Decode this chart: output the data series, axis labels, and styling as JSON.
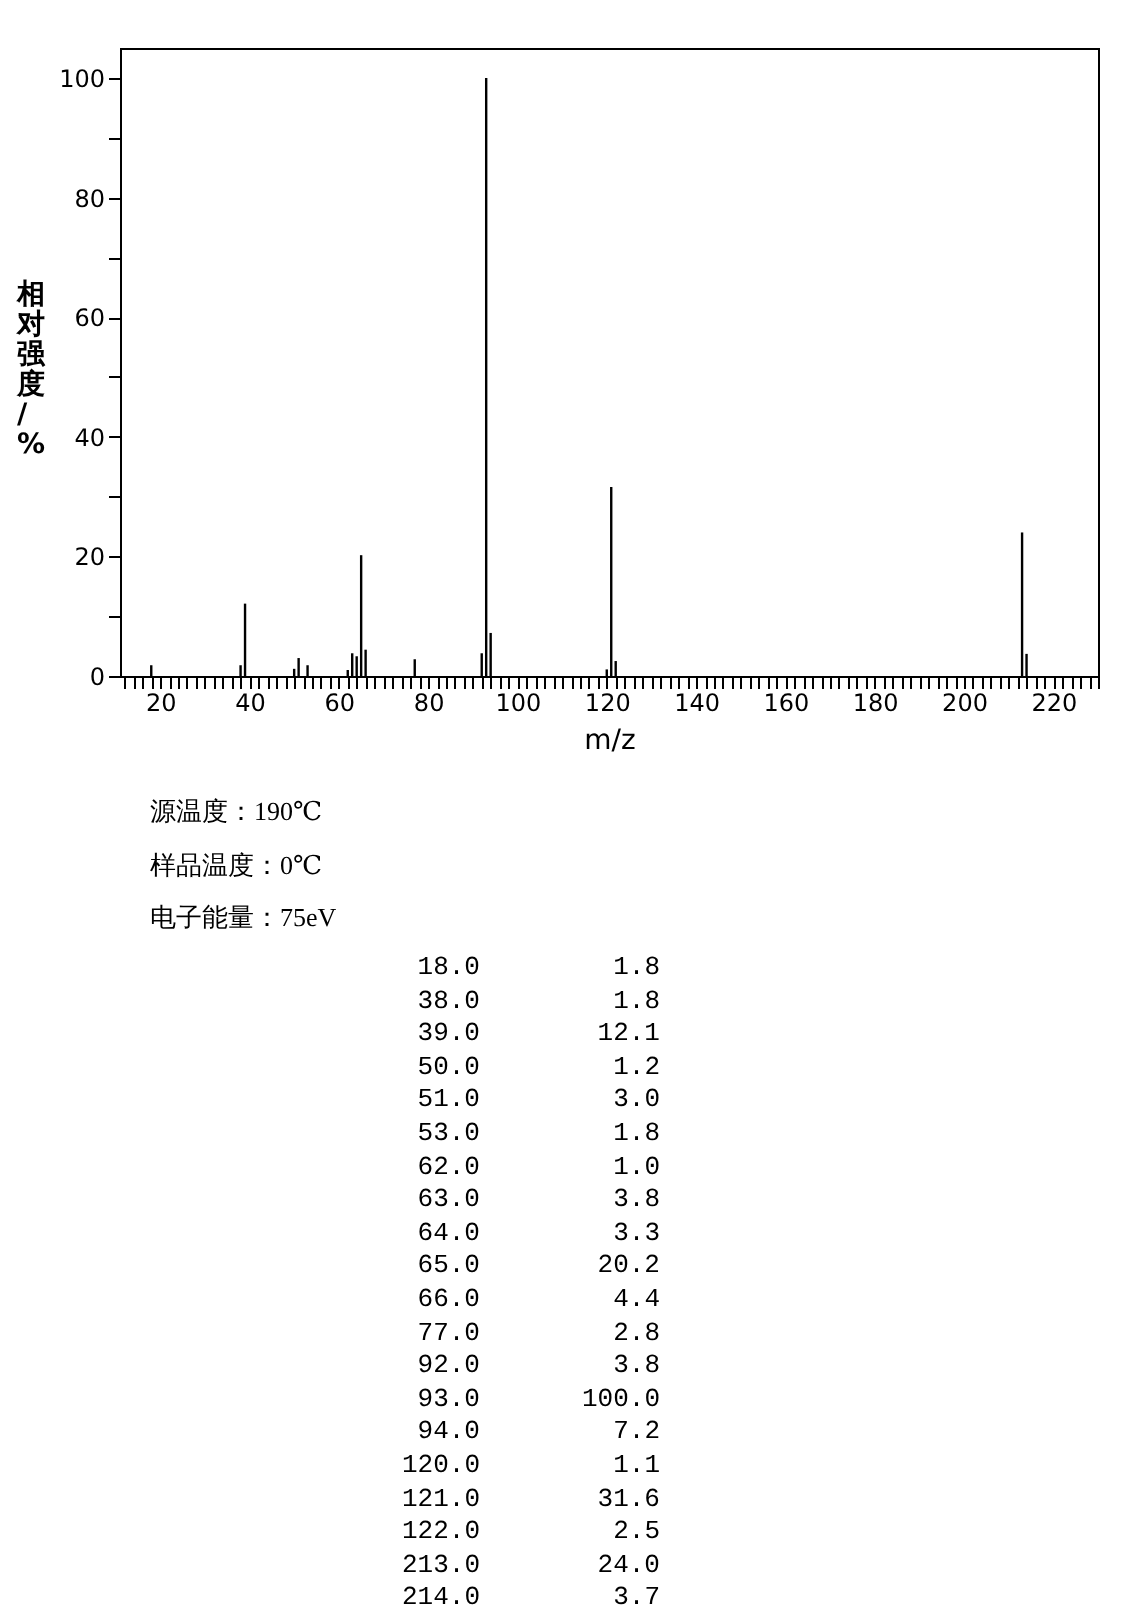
{
  "chart_data": [
    {
      "type": "bar",
      "xlabel": "m/z",
      "ylabel": "相对强度/%",
      "x": [
        18.0,
        38.0,
        39.0,
        50.0,
        51.0,
        53.0,
        62.0,
        63.0,
        64.0,
        65.0,
        66.0,
        77.0,
        92.0,
        93.0,
        94.0,
        120.0,
        121.0,
        122.0,
        213.0,
        214.0
      ],
      "series": [
        {
          "color": "#000000",
          "values": [
            1.8,
            1.8,
            12.1,
            1.2,
            3.0,
            1.8,
            1.0,
            3.8,
            3.3,
            20.2,
            4.4,
            2.8,
            3.8,
            100.0,
            7.2,
            1.1,
            31.6,
            2.5,
            24.0,
            3.7
          ]
        }
      ],
      "xlim": [
        11,
        230
      ],
      "ylim": [
        0,
        105
      ],
      "xticks": [
        {
          "value": 12,
          "label": null
        },
        {
          "value": 14,
          "label": null
        },
        {
          "value": 16,
          "label": null
        },
        {
          "value": 18,
          "label": null
        },
        20,
        {
          "value": 22,
          "label": null
        },
        {
          "value": 24,
          "label": null
        },
        {
          "value": 26,
          "label": null
        },
        {
          "value": 28,
          "label": null
        },
        {
          "value": 30,
          "label": null
        },
        {
          "value": 32,
          "label": null
        },
        {
          "value": 34,
          "label": null
        },
        {
          "value": 36,
          "label": null
        },
        {
          "value": 38,
          "label": null
        },
        40,
        {
          "value": 42,
          "label": null
        },
        {
          "value": 44,
          "label": null
        },
        {
          "value": 46,
          "label": null
        },
        {
          "value": 48,
          "label": null
        },
        {
          "value": 50,
          "label": null
        },
        {
          "value": 52,
          "label": null
        },
        {
          "value": 54,
          "label": null
        },
        {
          "value": 56,
          "label": null
        },
        {
          "value": 58,
          "label": null
        },
        60,
        {
          "value": 62,
          "label": null
        },
        {
          "value": 64,
          "label": null
        },
        {
          "value": 66,
          "label": null
        },
        {
          "value": 68,
          "label": null
        },
        {
          "value": 70,
          "label": null
        },
        {
          "value": 72,
          "label": null
        },
        {
          "value": 74,
          "label": null
        },
        {
          "value": 76,
          "label": null
        },
        {
          "value": 78,
          "label": null
        },
        80,
        {
          "value": 82,
          "label": null
        },
        {
          "value": 84,
          "label": null
        },
        {
          "value": 86,
          "label": null
        },
        {
          "value": 88,
          "label": null
        },
        {
          "value": 90,
          "label": null
        },
        {
          "value": 92,
          "label": null
        },
        {
          "value": 94,
          "label": null
        },
        {
          "value": 96,
          "label": null
        },
        {
          "value": 98,
          "label": null
        },
        100,
        {
          "value": 102,
          "label": null
        },
        {
          "value": 104,
          "label": null
        },
        {
          "value": 106,
          "label": null
        },
        {
          "value": 108,
          "label": null
        },
        {
          "value": 110,
          "label": null
        },
        {
          "value": 112,
          "label": null
        },
        {
          "value": 114,
          "label": null
        },
        {
          "value": 116,
          "label": null
        },
        {
          "value": 118,
          "label": null
        },
        120,
        {
          "value": 122,
          "label": null
        },
        {
          "value": 124,
          "label": null
        },
        {
          "value": 126,
          "label": null
        },
        {
          "value": 128,
          "label": null
        },
        {
          "value": 130,
          "label": null
        },
        {
          "value": 132,
          "label": null
        },
        {
          "value": 134,
          "label": null
        },
        {
          "value": 136,
          "label": null
        },
        {
          "value": 138,
          "label": null
        },
        140,
        {
          "value": 142,
          "label": null
        },
        {
          "value": 144,
          "label": null
        },
        {
          "value": 146,
          "label": null
        },
        {
          "value": 148,
          "label": null
        },
        {
          "value": 150,
          "label": null
        },
        {
          "value": 152,
          "label": null
        },
        {
          "value": 154,
          "label": null
        },
        {
          "value": 156,
          "label": null
        },
        {
          "value": 158,
          "label": null
        },
        160,
        {
          "value": 162,
          "label": null
        },
        {
          "value": 164,
          "label": null
        },
        {
          "value": 166,
          "label": null
        },
        {
          "value": 168,
          "label": null
        },
        {
          "value": 170,
          "label": null
        },
        {
          "value": 172,
          "label": null
        },
        {
          "value": 174,
          "label": null
        },
        {
          "value": 176,
          "label": null
        },
        {
          "value": 178,
          "label": null
        },
        180,
        {
          "value": 182,
          "label": null
        },
        {
          "value": 184,
          "label": null
        },
        {
          "value": 186,
          "label": null
        },
        {
          "value": 188,
          "label": null
        },
        {
          "value": 190,
          "label": null
        },
        {
          "value": 192,
          "label": null
        },
        {
          "value": 194,
          "label": null
        },
        {
          "value": 196,
          "label": null
        },
        {
          "value": 198,
          "label": null
        },
        200,
        {
          "value": 202,
          "label": null
        },
        {
          "value": 204,
          "label": null
        },
        {
          "value": 206,
          "label": null
        },
        {
          "value": 208,
          "label": null
        },
        {
          "value": 210,
          "label": null
        },
        {
          "value": 212,
          "label": null
        },
        {
          "value": 214,
          "label": null
        },
        {
          "value": 216,
          "label": null
        },
        {
          "value": 218,
          "label": null
        },
        220,
        {
          "value": 222,
          "label": null
        },
        {
          "value": 224,
          "label": null
        },
        {
          "value": 226,
          "label": null
        },
        {
          "value": 228,
          "label": null
        },
        {
          "value": 230,
          "label": null
        }
      ],
      "yticks": [
        0,
        {
          "value": 10,
          "label": null
        },
        20,
        {
          "value": 30,
          "label": null
        },
        40,
        {
          "value": 50,
          "label": null
        },
        60,
        {
          "value": 70,
          "label": null
        },
        80,
        {
          "value": 90,
          "label": null
        },
        100
      ],
      "grid": false,
      "legend": false,
      "annotations": [
        "源温度：190℃",
        "样品温度：0℃",
        "电子能量：75eV"
      ]
    },
    {
      "type": "other",
      "categories": [
        "18.0",
        "38.0",
        "39.0",
        "50.0",
        "51.0",
        "53.0",
        "62.0",
        "63.0",
        "64.0",
        "65.0",
        "66.0",
        "77.0",
        "92.0",
        "93.0",
        "94.0",
        "120.0",
        "121.0",
        "122.0",
        "213.0",
        "214.0"
      ],
      "value_labels": [
        "1.8",
        "1.8",
        "12.1",
        "1.2",
        "3.0",
        "1.8",
        "1.0",
        "3.8",
        "3.3",
        "20.2",
        "4.4",
        "2.8",
        "3.8",
        "100.0",
        "7.2",
        "1.1",
        "31.6",
        "2.5",
        "24.0",
        "3.7"
      ]
    }
  ]
}
